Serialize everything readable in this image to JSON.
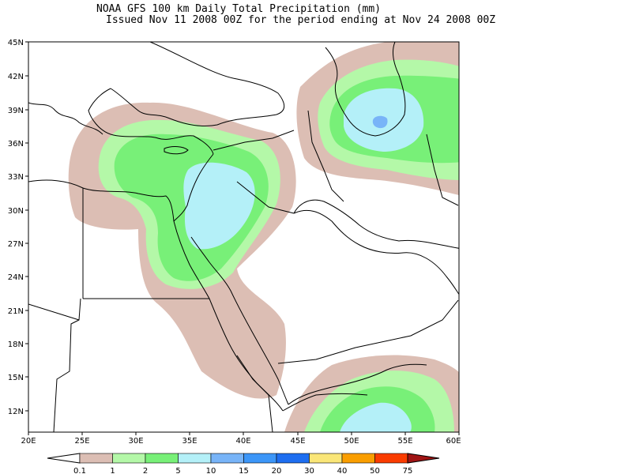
{
  "title_line1": "NOAA GFS 100 km Daily Total Precipitation (mm)",
  "title_line2": "Issued Nov 11 2008 00Z for the period ending at Nov 24 2008 00Z",
  "lat_labels": [
    "45N",
    "42N",
    "39N",
    "36N",
    "33N",
    "30N",
    "27N",
    "24N",
    "21N",
    "18N",
    "15N",
    "12N"
  ],
  "lon_labels": [
    "20E",
    "25E",
    "30E",
    "35E",
    "40E",
    "45E",
    "50E",
    "55E",
    "60E"
  ],
  "legend": {
    "labels": [
      "0.1",
      "1",
      "2",
      "5",
      "10",
      "15",
      "20",
      "30",
      "40",
      "50",
      "75"
    ],
    "colors": [
      "#ffffff",
      "#dcbeb4",
      "#b4f8a8",
      "#78f078",
      "#b4f0f8",
      "#78b4f8",
      "#3c96f8",
      "#1e6ef0",
      "#fae678",
      "#fa9e00",
      "#fa3c00",
      "#a01414"
    ]
  },
  "colors": {
    "brown": "#dcbeb4",
    "light_green": "#b4f8a8",
    "green": "#78f078",
    "light_blue": "#b4f0f8",
    "blue": "#78b4f8",
    "coast": "#000000"
  }
}
